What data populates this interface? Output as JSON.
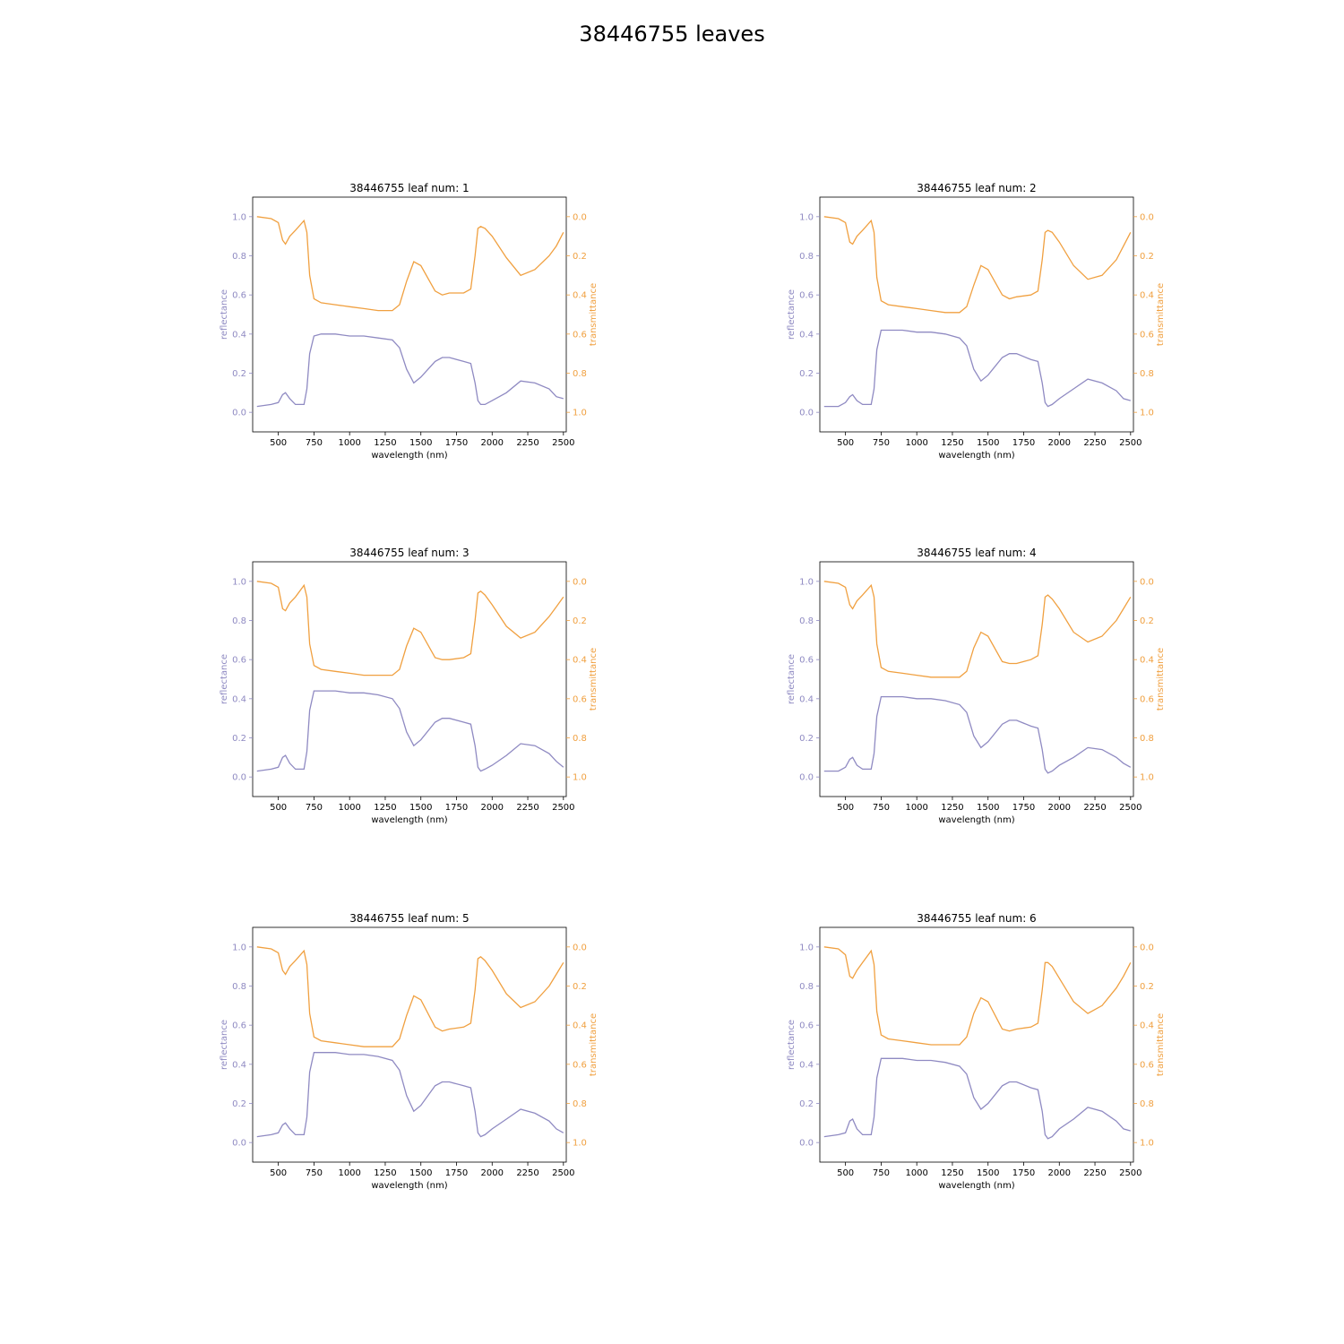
{
  "figure": {
    "title": "38446755 leaves"
  },
  "colors": {
    "reflectance": "#8f8ac2",
    "transmittance": "#f0a040",
    "axis": "#000000"
  },
  "axes_common": {
    "xlabel": "wavelength (nm)",
    "ylabel_left": "reflectance",
    "ylabel_right": "transmittance",
    "xlim": [
      320,
      2520
    ],
    "ylim_left": [
      -0.1,
      1.1
    ],
    "ylim_right_inverted": [
      1.1,
      -0.1
    ],
    "xticks": [
      500,
      750,
      1000,
      1250,
      1500,
      1750,
      2000,
      2250,
      2500
    ],
    "xtick_labels": [
      "500",
      "750",
      "1000",
      "1250",
      "1500",
      "1750",
      "2000",
      "2250",
      "2500"
    ],
    "yticks_left": [
      0.0,
      0.2,
      0.4,
      0.6,
      0.8,
      1.0
    ],
    "ytick_labels_left": [
      "0.0",
      "0.2",
      "0.4",
      "0.6",
      "0.8",
      "1.0"
    ],
    "yticks_right": [
      0.0,
      0.2,
      0.4,
      0.6,
      0.8,
      1.0
    ],
    "ytick_labels_right": [
      "0.0",
      "0.2",
      "0.4",
      "0.6",
      "0.8",
      "1.0"
    ]
  },
  "chart_data": [
    {
      "type": "line",
      "title": "38446755 leaf num: 1",
      "x": [
        350,
        450,
        500,
        530,
        550,
        580,
        620,
        680,
        700,
        720,
        750,
        800,
        900,
        1000,
        1100,
        1200,
        1300,
        1350,
        1400,
        1450,
        1500,
        1600,
        1650,
        1700,
        1800,
        1850,
        1880,
        1900,
        1920,
        1950,
        2000,
        2100,
        2200,
        2300,
        2400,
        2450,
        2500
      ],
      "series": [
        {
          "name": "reflectance",
          "axis": "left",
          "values": [
            0.03,
            0.04,
            0.05,
            0.09,
            0.1,
            0.07,
            0.04,
            0.04,
            0.12,
            0.3,
            0.39,
            0.4,
            0.4,
            0.39,
            0.39,
            0.38,
            0.37,
            0.33,
            0.22,
            0.15,
            0.18,
            0.26,
            0.28,
            0.28,
            0.26,
            0.25,
            0.15,
            0.06,
            0.04,
            0.04,
            0.06,
            0.1,
            0.16,
            0.15,
            0.12,
            0.08,
            0.07
          ]
        },
        {
          "name": "transmittance",
          "axis": "right",
          "values": [
            0.0,
            0.01,
            0.03,
            0.12,
            0.14,
            0.1,
            0.07,
            0.02,
            0.08,
            0.3,
            0.42,
            0.44,
            0.45,
            0.46,
            0.47,
            0.48,
            0.48,
            0.45,
            0.33,
            0.23,
            0.25,
            0.38,
            0.4,
            0.39,
            0.39,
            0.37,
            0.2,
            0.06,
            0.05,
            0.06,
            0.1,
            0.21,
            0.3,
            0.27,
            0.2,
            0.15,
            0.08
          ]
        }
      ]
    },
    {
      "type": "line",
      "title": "38446755 leaf num: 2",
      "x": [
        350,
        450,
        500,
        530,
        550,
        580,
        620,
        680,
        700,
        720,
        750,
        800,
        900,
        1000,
        1100,
        1200,
        1300,
        1350,
        1400,
        1450,
        1500,
        1600,
        1650,
        1700,
        1800,
        1850,
        1880,
        1900,
        1920,
        1950,
        2000,
        2100,
        2200,
        2300,
        2400,
        2450,
        2500
      ],
      "series": [
        {
          "name": "reflectance",
          "axis": "left",
          "values": [
            0.03,
            0.03,
            0.05,
            0.08,
            0.09,
            0.06,
            0.04,
            0.04,
            0.12,
            0.32,
            0.42,
            0.42,
            0.42,
            0.41,
            0.41,
            0.4,
            0.38,
            0.34,
            0.22,
            0.16,
            0.19,
            0.28,
            0.3,
            0.3,
            0.27,
            0.26,
            0.15,
            0.05,
            0.03,
            0.04,
            0.07,
            0.12,
            0.17,
            0.15,
            0.11,
            0.07,
            0.06
          ]
        },
        {
          "name": "transmittance",
          "axis": "right",
          "values": [
            0.0,
            0.01,
            0.03,
            0.13,
            0.14,
            0.1,
            0.07,
            0.02,
            0.08,
            0.31,
            0.43,
            0.45,
            0.46,
            0.47,
            0.48,
            0.49,
            0.49,
            0.46,
            0.35,
            0.25,
            0.27,
            0.4,
            0.42,
            0.41,
            0.4,
            0.38,
            0.22,
            0.08,
            0.07,
            0.08,
            0.13,
            0.25,
            0.32,
            0.3,
            0.22,
            0.15,
            0.08
          ]
        }
      ]
    },
    {
      "type": "line",
      "title": "38446755 leaf num: 3",
      "x": [
        350,
        450,
        500,
        530,
        550,
        580,
        620,
        680,
        700,
        720,
        750,
        800,
        900,
        1000,
        1100,
        1200,
        1300,
        1350,
        1400,
        1450,
        1500,
        1600,
        1650,
        1700,
        1800,
        1850,
        1880,
        1900,
        1920,
        1950,
        2000,
        2100,
        2200,
        2300,
        2400,
        2450,
        2500
      ],
      "series": [
        {
          "name": "reflectance",
          "axis": "left",
          "values": [
            0.03,
            0.04,
            0.05,
            0.1,
            0.11,
            0.07,
            0.04,
            0.04,
            0.13,
            0.34,
            0.44,
            0.44,
            0.44,
            0.43,
            0.43,
            0.42,
            0.4,
            0.35,
            0.23,
            0.16,
            0.19,
            0.28,
            0.3,
            0.3,
            0.28,
            0.27,
            0.16,
            0.05,
            0.03,
            0.04,
            0.06,
            0.11,
            0.17,
            0.16,
            0.12,
            0.08,
            0.05
          ]
        },
        {
          "name": "transmittance",
          "axis": "right",
          "values": [
            0.0,
            0.01,
            0.03,
            0.14,
            0.15,
            0.11,
            0.08,
            0.02,
            0.08,
            0.32,
            0.43,
            0.45,
            0.46,
            0.47,
            0.48,
            0.48,
            0.48,
            0.45,
            0.33,
            0.24,
            0.26,
            0.39,
            0.4,
            0.4,
            0.39,
            0.37,
            0.2,
            0.06,
            0.05,
            0.07,
            0.12,
            0.23,
            0.29,
            0.26,
            0.18,
            0.13,
            0.08
          ]
        }
      ]
    },
    {
      "type": "line",
      "title": "38446755 leaf num: 4",
      "x": [
        350,
        450,
        500,
        530,
        550,
        580,
        620,
        680,
        700,
        720,
        750,
        800,
        900,
        1000,
        1100,
        1200,
        1300,
        1350,
        1400,
        1450,
        1500,
        1600,
        1650,
        1700,
        1800,
        1850,
        1880,
        1900,
        1920,
        1950,
        2000,
        2100,
        2200,
        2300,
        2400,
        2450,
        2500
      ],
      "series": [
        {
          "name": "reflectance",
          "axis": "left",
          "values": [
            0.03,
            0.03,
            0.05,
            0.09,
            0.1,
            0.06,
            0.04,
            0.04,
            0.12,
            0.31,
            0.41,
            0.41,
            0.41,
            0.4,
            0.4,
            0.39,
            0.37,
            0.33,
            0.21,
            0.15,
            0.18,
            0.27,
            0.29,
            0.29,
            0.26,
            0.25,
            0.14,
            0.04,
            0.02,
            0.03,
            0.06,
            0.1,
            0.15,
            0.14,
            0.1,
            0.07,
            0.05
          ]
        },
        {
          "name": "transmittance",
          "axis": "right",
          "values": [
            0.0,
            0.01,
            0.03,
            0.12,
            0.14,
            0.1,
            0.07,
            0.02,
            0.08,
            0.32,
            0.44,
            0.46,
            0.47,
            0.48,
            0.49,
            0.49,
            0.49,
            0.46,
            0.34,
            0.26,
            0.28,
            0.41,
            0.42,
            0.42,
            0.4,
            0.38,
            0.22,
            0.08,
            0.07,
            0.09,
            0.14,
            0.26,
            0.31,
            0.28,
            0.2,
            0.14,
            0.08
          ]
        }
      ]
    },
    {
      "type": "line",
      "title": "38446755 leaf num: 5",
      "x": [
        350,
        450,
        500,
        530,
        550,
        580,
        620,
        680,
        700,
        720,
        750,
        800,
        900,
        1000,
        1100,
        1200,
        1300,
        1350,
        1400,
        1450,
        1500,
        1600,
        1650,
        1700,
        1800,
        1850,
        1880,
        1900,
        1920,
        1950,
        2000,
        2100,
        2200,
        2300,
        2400,
        2450,
        2500
      ],
      "series": [
        {
          "name": "reflectance",
          "axis": "left",
          "values": [
            0.03,
            0.04,
            0.05,
            0.09,
            0.1,
            0.07,
            0.04,
            0.04,
            0.13,
            0.36,
            0.46,
            0.46,
            0.46,
            0.45,
            0.45,
            0.44,
            0.42,
            0.37,
            0.24,
            0.16,
            0.19,
            0.29,
            0.31,
            0.31,
            0.29,
            0.28,
            0.16,
            0.05,
            0.03,
            0.04,
            0.07,
            0.12,
            0.17,
            0.15,
            0.11,
            0.07,
            0.05
          ]
        },
        {
          "name": "transmittance",
          "axis": "right",
          "values": [
            0.0,
            0.01,
            0.03,
            0.12,
            0.14,
            0.1,
            0.07,
            0.02,
            0.09,
            0.34,
            0.46,
            0.48,
            0.49,
            0.5,
            0.51,
            0.51,
            0.51,
            0.47,
            0.35,
            0.25,
            0.27,
            0.41,
            0.43,
            0.42,
            0.41,
            0.39,
            0.22,
            0.06,
            0.05,
            0.07,
            0.12,
            0.24,
            0.31,
            0.28,
            0.2,
            0.14,
            0.08
          ]
        }
      ]
    },
    {
      "type": "line",
      "title": "38446755 leaf num: 6",
      "x": [
        350,
        450,
        500,
        530,
        550,
        580,
        620,
        680,
        700,
        720,
        750,
        800,
        900,
        1000,
        1100,
        1200,
        1300,
        1350,
        1400,
        1450,
        1500,
        1600,
        1650,
        1700,
        1800,
        1850,
        1880,
        1900,
        1920,
        1950,
        2000,
        2100,
        2200,
        2300,
        2400,
        2450,
        2500
      ],
      "series": [
        {
          "name": "reflectance",
          "axis": "left",
          "values": [
            0.03,
            0.04,
            0.05,
            0.11,
            0.12,
            0.07,
            0.04,
            0.04,
            0.13,
            0.33,
            0.43,
            0.43,
            0.43,
            0.42,
            0.42,
            0.41,
            0.39,
            0.35,
            0.23,
            0.17,
            0.2,
            0.29,
            0.31,
            0.31,
            0.28,
            0.27,
            0.16,
            0.04,
            0.02,
            0.03,
            0.07,
            0.12,
            0.18,
            0.16,
            0.11,
            0.07,
            0.06
          ]
        },
        {
          "name": "transmittance",
          "axis": "right",
          "values": [
            0.0,
            0.01,
            0.04,
            0.15,
            0.16,
            0.12,
            0.08,
            0.02,
            0.09,
            0.33,
            0.45,
            0.47,
            0.48,
            0.49,
            0.5,
            0.5,
            0.5,
            0.46,
            0.34,
            0.26,
            0.28,
            0.42,
            0.43,
            0.42,
            0.41,
            0.39,
            0.22,
            0.08,
            0.08,
            0.1,
            0.16,
            0.28,
            0.34,
            0.3,
            0.21,
            0.15,
            0.08
          ]
        }
      ]
    }
  ]
}
